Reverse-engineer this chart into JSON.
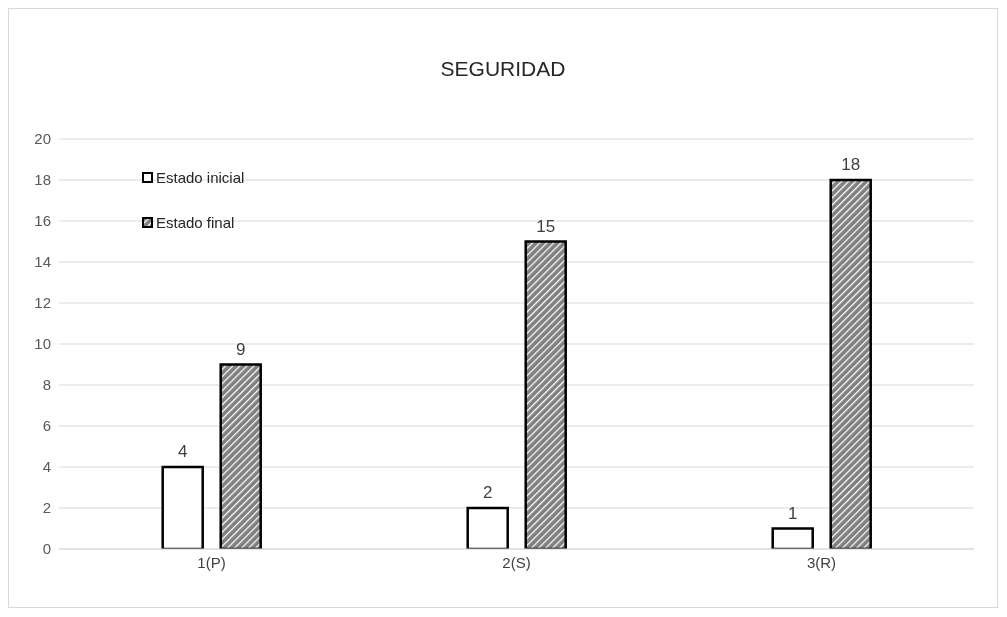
{
  "chart_data": {
    "type": "bar",
    "title": "SEGURIDAD",
    "categories": [
      "1(P)",
      "2(S)",
      "3(R)"
    ],
    "series": [
      {
        "name": "Estado inicial",
        "color": "#ffffff",
        "values": [
          4,
          2,
          1
        ]
      },
      {
        "name": "Estado final",
        "color": "#808080",
        "values": [
          9,
          15,
          18
        ]
      }
    ],
    "ylim": [
      0,
      20
    ],
    "yticks": [
      0,
      2,
      4,
      6,
      8,
      10,
      12,
      14,
      16,
      18,
      20
    ],
    "grid": "y",
    "legend": "top left",
    "data_labels": true
  }
}
